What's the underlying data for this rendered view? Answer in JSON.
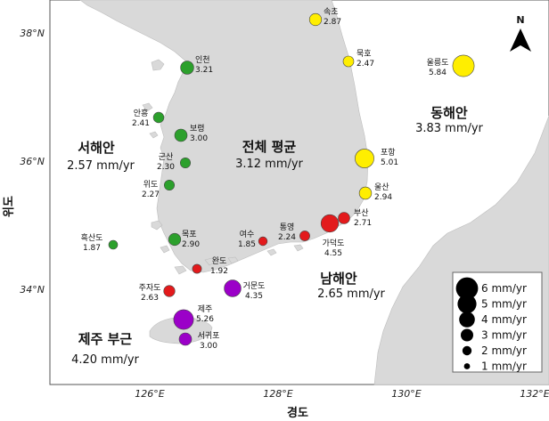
{
  "axes": {
    "xlabel": "경도",
    "ylabel": "위도",
    "lat_ticks": [
      "38°N",
      "36°N",
      "34°N"
    ],
    "lon_ticks": [
      "126°E",
      "128°E",
      "130°E",
      "132°E"
    ]
  },
  "north_label": "N",
  "regions": [
    {
      "id": "west",
      "name": "서해안",
      "value": "2.57 mm/yr"
    },
    {
      "id": "total",
      "name": "전체 평균",
      "value": "3.12 mm/yr"
    },
    {
      "id": "east",
      "name": "동해안",
      "value": "3.83 mm/yr"
    },
    {
      "id": "south",
      "name": "남해안",
      "value": "2.65 mm/yr"
    },
    {
      "id": "jeju",
      "name": "제주 부근",
      "value": "4.20 mm/yr"
    }
  ],
  "stations": [
    {
      "name": "속초",
      "value": "2.87",
      "rate": 2.87,
      "region": "east"
    },
    {
      "name": "묵호",
      "value": "2.47",
      "rate": 2.47,
      "region": "east"
    },
    {
      "name": "울릉도",
      "value": "5.84",
      "rate": 5.84,
      "region": "east"
    },
    {
      "name": "포항",
      "value": "5.01",
      "rate": 5.01,
      "region": "east"
    },
    {
      "name": "울산",
      "value": "2.94",
      "rate": 2.94,
      "region": "east"
    },
    {
      "name": "부산",
      "value": "2.71",
      "rate": 2.71,
      "region": "south"
    },
    {
      "name": "가덕도",
      "value": "4.55",
      "rate": 4.55,
      "region": "south"
    },
    {
      "name": "통영",
      "value": "2.24",
      "rate": 2.24,
      "region": "south"
    },
    {
      "name": "여수",
      "value": "1.85",
      "rate": 1.85,
      "region": "south"
    },
    {
      "name": "완도",
      "value": "1.92",
      "rate": 1.92,
      "region": "south"
    },
    {
      "name": "거문도",
      "value": "4.35",
      "rate": 4.35,
      "region": "jeju"
    },
    {
      "name": "주자도",
      "value": "2.63",
      "rate": 2.63,
      "region": "south"
    },
    {
      "name": "제주",
      "value": "5.26",
      "rate": 5.26,
      "region": "jeju"
    },
    {
      "name": "서귀포",
      "value": "3.00",
      "rate": 3.0,
      "region": "jeju"
    },
    {
      "name": "인천",
      "value": "3.21",
      "rate": 3.21,
      "region": "west"
    },
    {
      "name": "안흥",
      "value": "2.41",
      "rate": 2.41,
      "region": "west"
    },
    {
      "name": "보령",
      "value": "3.00",
      "rate": 3.0,
      "region": "west"
    },
    {
      "name": "군산",
      "value": "2.30",
      "rate": 2.3,
      "region": "west"
    },
    {
      "name": "위도",
      "value": "2.27",
      "rate": 2.27,
      "region": "west"
    },
    {
      "name": "목포",
      "value": "2.90",
      "rate": 2.9,
      "region": "west"
    },
    {
      "name": "흑산도",
      "value": "1.87",
      "rate": 1.87,
      "region": "west"
    }
  ],
  "region_colors": {
    "west": "#2ca02c",
    "east": "#ffee00",
    "south": "#e31a1c",
    "jeju": "#9b00c8"
  },
  "legend": [
    {
      "label": "6 mm/yr",
      "rate": 6
    },
    {
      "label": "5 mm/yr",
      "rate": 5
    },
    {
      "label": "4 mm/yr",
      "rate": 4
    },
    {
      "label": "3 mm/yr",
      "rate": 3
    },
    {
      "label": "2 mm/yr",
      "rate": 2
    },
    {
      "label": "1 mm/yr",
      "rate": 1
    }
  ]
}
